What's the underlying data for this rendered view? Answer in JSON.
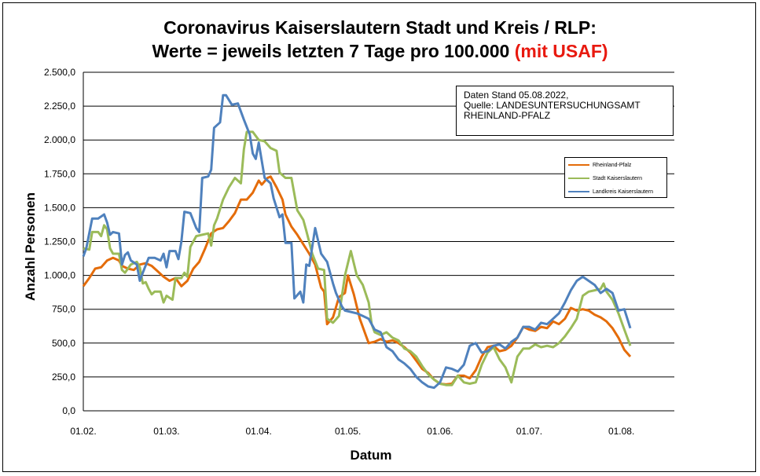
{
  "title": {
    "line1": "Coronavirus Kaiserslautern Stadt und Kreis / RLP:",
    "line2": "Werte = jeweils letzten 7 Tage pro 100.000 ",
    "line2_highlight": "(mit USAF)",
    "highlight_color": "#e8190f"
  },
  "source_box": {
    "line1": "Daten Stand 05.08.2022,",
    "line2": "Quelle: LANDESUNTERSUCHUNGSAMT",
    "line3": "RHEINLAND-PFALZ"
  },
  "chart_data": {
    "type": "line",
    "title": "Coronavirus Kaiserslautern Stadt und Kreis / RLP: Werte = jeweils letzten 7 Tage pro 100.000 (mit USAF)",
    "xlabel": "Datum",
    "ylabel": "Anzahl Personen",
    "ylim": [
      0,
      2500
    ],
    "y_ticks": [
      "0,0",
      "250,0",
      "500,0",
      "750,0",
      "1.000,0",
      "1.250,0",
      "1.500,0",
      "1.750,0",
      "2.000,0",
      "2.250,0",
      "2.500,0"
    ],
    "x_tick_labels": [
      "01.02.",
      "01.03.",
      "01.04.",
      "01.05.",
      "01.06.",
      "01.07.",
      "01.08."
    ],
    "x_tick_days": [
      0,
      28,
      59,
      89,
      120,
      150,
      181
    ],
    "x_range_days": [
      0,
      184
    ],
    "grid": true,
    "legend_position": "right",
    "series": [
      {
        "name": "Rheinland-Pfalz",
        "color": "#e46c0a",
        "points": [
          [
            0,
            920
          ],
          [
            2,
            980
          ],
          [
            4,
            1050
          ],
          [
            6,
            1060
          ],
          [
            8,
            1110
          ],
          [
            10,
            1130
          ],
          [
            12,
            1110
          ],
          [
            13,
            1070
          ],
          [
            15,
            1050
          ],
          [
            17,
            1040
          ],
          [
            19,
            1080
          ],
          [
            21,
            1090
          ],
          [
            23,
            1070
          ],
          [
            25,
            1030
          ],
          [
            27,
            990
          ],
          [
            29,
            960
          ],
          [
            31,
            980
          ],
          [
            33,
            920
          ],
          [
            35,
            960
          ],
          [
            37,
            1050
          ],
          [
            39,
            1100
          ],
          [
            41,
            1200
          ],
          [
            43,
            1310
          ],
          [
            45,
            1340
          ],
          [
            47,
            1350
          ],
          [
            49,
            1400
          ],
          [
            51,
            1460
          ],
          [
            53,
            1560
          ],
          [
            55,
            1560
          ],
          [
            57,
            1610
          ],
          [
            59,
            1700
          ],
          [
            60,
            1670
          ],
          [
            62,
            1720
          ],
          [
            63,
            1730
          ],
          [
            65,
            1650
          ],
          [
            67,
            1560
          ],
          [
            68,
            1450
          ],
          [
            70,
            1360
          ],
          [
            72,
            1300
          ],
          [
            74,
            1230
          ],
          [
            76,
            1160
          ],
          [
            78,
            1080
          ],
          [
            80,
            910
          ],
          [
            81,
            880
          ],
          [
            82,
            640
          ],
          [
            84,
            690
          ],
          [
            86,
            840
          ],
          [
            88,
            870
          ],
          [
            89,
            1000
          ],
          [
            91,
            860
          ],
          [
            93,
            680
          ],
          [
            95,
            560
          ],
          [
            96,
            500
          ],
          [
            98,
            510
          ],
          [
            100,
            530
          ],
          [
            102,
            510
          ],
          [
            104,
            520
          ],
          [
            106,
            500
          ],
          [
            108,
            470
          ],
          [
            110,
            430
          ],
          [
            112,
            370
          ],
          [
            114,
            310
          ],
          [
            116,
            280
          ],
          [
            118,
            230
          ],
          [
            120,
            200
          ],
          [
            122,
            195
          ],
          [
            124,
            200
          ],
          [
            126,
            260
          ],
          [
            128,
            260
          ],
          [
            130,
            240
          ],
          [
            132,
            300
          ],
          [
            134,
            400
          ],
          [
            136,
            470
          ],
          [
            138,
            480
          ],
          [
            140,
            440
          ],
          [
            142,
            450
          ],
          [
            144,
            480
          ],
          [
            146,
            540
          ],
          [
            148,
            620
          ],
          [
            150,
            600
          ],
          [
            152,
            590
          ],
          [
            154,
            620
          ],
          [
            156,
            610
          ],
          [
            158,
            660
          ],
          [
            160,
            640
          ],
          [
            162,
            680
          ],
          [
            164,
            760
          ],
          [
            166,
            740
          ],
          [
            168,
            750
          ],
          [
            170,
            740
          ],
          [
            172,
            710
          ],
          [
            174,
            690
          ],
          [
            176,
            660
          ],
          [
            178,
            610
          ],
          [
            180,
            540
          ],
          [
            182,
            450
          ],
          [
            184,
            400
          ]
        ]
      },
      {
        "name": "Stadt Kaiserslautern",
        "color": "#9bbb59",
        "points": [
          [
            0,
            1200
          ],
          [
            2,
            1190
          ],
          [
            3,
            1320
          ],
          [
            5,
            1320
          ],
          [
            6,
            1290
          ],
          [
            7,
            1370
          ],
          [
            8,
            1340
          ],
          [
            9,
            1200
          ],
          [
            10,
            1160
          ],
          [
            12,
            1160
          ],
          [
            13,
            1040
          ],
          [
            14,
            1020
          ],
          [
            16,
            1080
          ],
          [
            18,
            1100
          ],
          [
            19,
            1060
          ],
          [
            20,
            940
          ],
          [
            21,
            950
          ],
          [
            22,
            900
          ],
          [
            23,
            860
          ],
          [
            24,
            880
          ],
          [
            26,
            880
          ],
          [
            27,
            800
          ],
          [
            28,
            850
          ],
          [
            30,
            820
          ],
          [
            31,
            980
          ],
          [
            33,
            980
          ],
          [
            34,
            1020
          ],
          [
            35,
            990
          ],
          [
            36,
            1210
          ],
          [
            38,
            1290
          ],
          [
            40,
            1300
          ],
          [
            42,
            1310
          ],
          [
            43,
            1220
          ],
          [
            44,
            1370
          ],
          [
            45,
            1420
          ],
          [
            47,
            1560
          ],
          [
            49,
            1650
          ],
          [
            51,
            1720
          ],
          [
            53,
            1680
          ],
          [
            54,
            1930
          ],
          [
            55,
            2060
          ],
          [
            57,
            2060
          ],
          [
            59,
            2000
          ],
          [
            61,
            1990
          ],
          [
            63,
            1940
          ],
          [
            65,
            1920
          ],
          [
            66,
            1760
          ],
          [
            68,
            1720
          ],
          [
            70,
            1720
          ],
          [
            72,
            1480
          ],
          [
            74,
            1410
          ],
          [
            75,
            1330
          ],
          [
            77,
            1160
          ],
          [
            79,
            1050
          ],
          [
            81,
            1040
          ],
          [
            82,
            680
          ],
          [
            84,
            650
          ],
          [
            86,
            700
          ],
          [
            88,
            1000
          ],
          [
            90,
            1180
          ],
          [
            92,
            1000
          ],
          [
            94,
            930
          ],
          [
            96,
            800
          ],
          [
            97,
            640
          ],
          [
            98,
            580
          ],
          [
            100,
            560
          ],
          [
            102,
            580
          ],
          [
            104,
            540
          ],
          [
            106,
            520
          ],
          [
            108,
            460
          ],
          [
            110,
            440
          ],
          [
            112,
            400
          ],
          [
            114,
            330
          ],
          [
            116,
            270
          ],
          [
            118,
            230
          ],
          [
            120,
            200
          ],
          [
            122,
            190
          ],
          [
            124,
            190
          ],
          [
            126,
            260
          ],
          [
            128,
            210
          ],
          [
            130,
            200
          ],
          [
            132,
            210
          ],
          [
            134,
            340
          ],
          [
            136,
            430
          ],
          [
            138,
            470
          ],
          [
            140,
            380
          ],
          [
            142,
            320
          ],
          [
            144,
            210
          ],
          [
            146,
            400
          ],
          [
            148,
            460
          ],
          [
            150,
            460
          ],
          [
            152,
            490
          ],
          [
            154,
            470
          ],
          [
            156,
            480
          ],
          [
            158,
            470
          ],
          [
            160,
            500
          ],
          [
            162,
            550
          ],
          [
            164,
            610
          ],
          [
            166,
            680
          ],
          [
            168,
            850
          ],
          [
            170,
            880
          ],
          [
            172,
            890
          ],
          [
            174,
            900
          ],
          [
            175,
            940
          ],
          [
            176,
            880
          ],
          [
            178,
            820
          ],
          [
            180,
            720
          ],
          [
            182,
            600
          ],
          [
            184,
            480
          ]
        ]
      },
      {
        "name": "Landkreis Kaiserslautern",
        "color": "#4f81bd",
        "points": [
          [
            0,
            1140
          ],
          [
            1,
            1200
          ],
          [
            3,
            1420
          ],
          [
            5,
            1420
          ],
          [
            7,
            1450
          ],
          [
            8,
            1390
          ],
          [
            9,
            1300
          ],
          [
            10,
            1320
          ],
          [
            12,
            1310
          ],
          [
            13,
            1080
          ],
          [
            14,
            1150
          ],
          [
            15,
            1170
          ],
          [
            16,
            1110
          ],
          [
            18,
            1080
          ],
          [
            19,
            960
          ],
          [
            20,
            1020
          ],
          [
            22,
            1130
          ],
          [
            24,
            1130
          ],
          [
            26,
            1110
          ],
          [
            27,
            1160
          ],
          [
            28,
            1060
          ],
          [
            29,
            1180
          ],
          [
            31,
            1180
          ],
          [
            32,
            1120
          ],
          [
            33,
            1250
          ],
          [
            34,
            1470
          ],
          [
            36,
            1460
          ],
          [
            38,
            1350
          ],
          [
            39,
            1320
          ],
          [
            40,
            1720
          ],
          [
            42,
            1730
          ],
          [
            43,
            1780
          ],
          [
            44,
            2090
          ],
          [
            46,
            2130
          ],
          [
            47,
            2330
          ],
          [
            48,
            2330
          ],
          [
            50,
            2260
          ],
          [
            52,
            2270
          ],
          [
            54,
            2150
          ],
          [
            56,
            2040
          ],
          [
            57,
            1900
          ],
          [
            58,
            1860
          ],
          [
            59,
            1980
          ],
          [
            61,
            1720
          ],
          [
            63,
            1680
          ],
          [
            64,
            1570
          ],
          [
            66,
            1430
          ],
          [
            67,
            1450
          ],
          [
            68,
            1240
          ],
          [
            70,
            1240
          ],
          [
            71,
            830
          ],
          [
            73,
            880
          ],
          [
            74,
            800
          ],
          [
            75,
            1080
          ],
          [
            76,
            1070
          ],
          [
            78,
            1350
          ],
          [
            80,
            1160
          ],
          [
            82,
            1100
          ],
          [
            84,
            940
          ],
          [
            85,
            870
          ],
          [
            87,
            770
          ],
          [
            88,
            740
          ],
          [
            90,
            730
          ],
          [
            92,
            720
          ],
          [
            94,
            700
          ],
          [
            96,
            680
          ],
          [
            98,
            600
          ],
          [
            100,
            580
          ],
          [
            102,
            470
          ],
          [
            104,
            440
          ],
          [
            106,
            380
          ],
          [
            108,
            350
          ],
          [
            110,
            310
          ],
          [
            112,
            250
          ],
          [
            114,
            210
          ],
          [
            116,
            180
          ],
          [
            118,
            170
          ],
          [
            120,
            210
          ],
          [
            122,
            320
          ],
          [
            124,
            310
          ],
          [
            126,
            290
          ],
          [
            128,
            340
          ],
          [
            130,
            480
          ],
          [
            132,
            500
          ],
          [
            134,
            430
          ],
          [
            136,
            440
          ],
          [
            138,
            480
          ],
          [
            140,
            490
          ],
          [
            142,
            460
          ],
          [
            144,
            510
          ],
          [
            146,
            540
          ],
          [
            148,
            620
          ],
          [
            150,
            620
          ],
          [
            152,
            600
          ],
          [
            154,
            650
          ],
          [
            156,
            640
          ],
          [
            158,
            680
          ],
          [
            160,
            720
          ],
          [
            162,
            800
          ],
          [
            164,
            890
          ],
          [
            166,
            960
          ],
          [
            168,
            990
          ],
          [
            170,
            960
          ],
          [
            172,
            930
          ],
          [
            174,
            870
          ],
          [
            176,
            900
          ],
          [
            178,
            870
          ],
          [
            180,
            740
          ],
          [
            182,
            750
          ],
          [
            184,
            610
          ]
        ]
      }
    ]
  }
}
